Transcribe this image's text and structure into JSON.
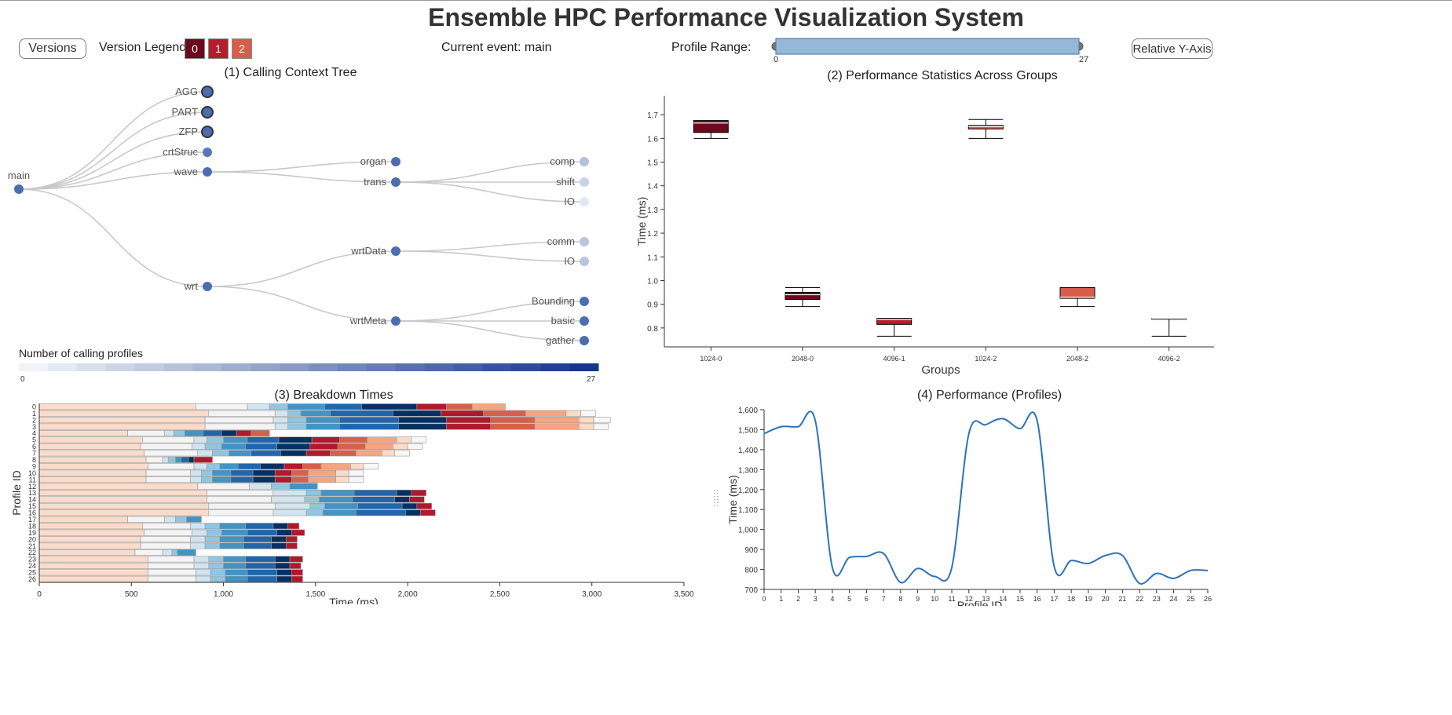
{
  "header": {
    "title": "Ensemble HPC Performance Visualization System",
    "versions_button": "Versions",
    "version_legends_label": "Version Legends:",
    "version_legends": [
      {
        "label": "0",
        "color": "#6b0a1f"
      },
      {
        "label": "1",
        "color": "#b71c2c"
      },
      {
        "label": "2",
        "color": "#d75d4a"
      }
    ],
    "current_event_label": "Current event: main",
    "profile_range_label": "Profile Range:",
    "profile_range_min": "0",
    "profile_range_max": "27",
    "relative_y_button": "Relative Y-Axis"
  },
  "cct": {
    "title": "(1) Calling Context Tree",
    "root": "main",
    "level1": [
      "AGG",
      "PART",
      "ZFP",
      "crtStruc",
      "wave",
      "wrt"
    ],
    "level2": [
      "organ",
      "trans",
      "wrtData",
      "wrtMeta"
    ],
    "level3": [
      "comp",
      "shift",
      "IO",
      "comm",
      "IO",
      "Bounding",
      "basic",
      "gather"
    ],
    "legend_title": "Number of calling profiles",
    "legend_min": "0",
    "legend_max": "27"
  },
  "boxplot": {
    "title": "(2) Performance Statistics Across Groups",
    "ylabel": "Time (ms)",
    "xlabel": "Groups"
  },
  "breakdown": {
    "title": "(3) Breakdown Times",
    "ylabel": "Profile ID",
    "xlabel": "Time (ms)"
  },
  "profiles": {
    "title": "(4) Performance (Profiles)",
    "ylabel": "Time (ms)",
    "xlabel": "Profile ID"
  },
  "chart_data": [
    {
      "type": "box",
      "title": "(2) Performance Statistics Across Groups",
      "xlabel": "Groups",
      "ylabel": "Time (ms)",
      "ylim": [
        0.72,
        1.78
      ],
      "y_ticks": [
        "0.8",
        "0.9",
        "1.0",
        "1.1",
        "1.2",
        "1.3",
        "1.4",
        "1.5",
        "1.6",
        "1.7"
      ],
      "categories": [
        "1024-0",
        "2048-0",
        "4096-1",
        "1024-2",
        "2048-2",
        "4096-2"
      ],
      "boxes": [
        {
          "group": "1024-0",
          "min": 1.6,
          "q1": 1.625,
          "median": 1.665,
          "q3": 1.675,
          "max": 1.675,
          "color": "#6b0a1f"
        },
        {
          "group": "2048-0",
          "min": 0.89,
          "q1": 0.92,
          "median": 0.94,
          "q3": 0.95,
          "max": 0.97,
          "color": "#6b0a1f"
        },
        {
          "group": "4096-1",
          "min": 0.765,
          "q1": 0.815,
          "median": 0.835,
          "q3": 0.84,
          "max": 0.84,
          "color": "#b71c2c"
        },
        {
          "group": "1024-2",
          "min": 1.6,
          "q1": 1.64,
          "median": 1.65,
          "q3": 1.655,
          "max": 1.68,
          "color": "#d75d4a"
        },
        {
          "group": "2048-2",
          "min": 0.89,
          "q1": 0.925,
          "median": 0.93,
          "q3": 0.97,
          "max": 0.97,
          "color": "#d75d4a"
        },
        {
          "group": "4096-2",
          "min": 0.765,
          "q1": 0.84,
          "median": 0.84,
          "q3": 0.84,
          "max": 0.84,
          "color": "#d75d4a"
        }
      ]
    },
    {
      "type": "bar",
      "orientation": "horizontal-stacked",
      "title": "(3) Breakdown Times",
      "xlabel": "Time (ms)",
      "ylabel": "Profile ID",
      "xlim": [
        0,
        3500
      ],
      "x_ticks": [
        "0",
        "500",
        "1,000",
        "1,500",
        "2,000",
        "2,500",
        "3,000",
        "3,500"
      ],
      "palette": [
        "#fbdccb",
        "#f4f4f4",
        "#d1e5f0",
        "#92c5de",
        "#4393c3",
        "#2166ac",
        "#053061",
        "#b2182b",
        "#d6604d",
        "#f4a582",
        "#fddbc7",
        "#f7f7f7"
      ],
      "categories": [
        "0",
        "1",
        "2",
        "3",
        "4",
        "5",
        "6",
        "7",
        "8",
        "9",
        "10",
        "11",
        "12",
        "13",
        "14",
        "15",
        "16",
        "17",
        "18",
        "19",
        "20",
        "21",
        "22",
        "23",
        "24",
        "25",
        "26"
      ],
      "rows": [
        [
          850,
          280,
          120,
          100,
          200,
          200,
          300,
          160,
          140,
          180
        ],
        [
          920,
          360,
          70,
          70,
          160,
          340,
          260,
          230,
          230,
          220,
          80,
          80
        ],
        [
          900,
          370,
          80,
          100,
          180,
          320,
          260,
          240,
          240,
          240,
          80,
          90
        ],
        [
          900,
          380,
          70,
          100,
          180,
          320,
          260,
          240,
          240,
          240,
          80,
          80
        ],
        [
          480,
          200,
          50,
          60,
          100,
          100,
          80,
          80,
          100
        ],
        [
          560,
          280,
          70,
          90,
          130,
          170,
          180,
          150,
          150,
          160,
          80,
          80
        ],
        [
          550,
          280,
          70,
          90,
          130,
          170,
          180,
          150,
          150,
          150,
          80,
          80
        ],
        [
          570,
          290,
          80,
          90,
          120,
          160,
          140,
          130,
          140,
          140,
          70,
          80
        ],
        [
          580,
          90,
          30,
          40,
          30,
          40,
          30,
          100
        ],
        [
          590,
          250,
          70,
          70,
          100,
          120,
          130,
          100,
          100,
          160,
          70,
          80
        ],
        [
          580,
          240,
          60,
          60,
          100,
          120,
          120,
          90,
          90,
          150,
          70,
          80
        ],
        [
          580,
          240,
          60,
          60,
          100,
          120,
          120,
          90,
          90,
          150,
          70,
          80
        ],
        [
          860,
          280,
          120,
          100,
          150
        ],
        [
          910,
          360,
          180,
          80,
          180,
          230,
          80,
          80
        ],
        [
          910,
          350,
          180,
          80,
          180,
          230,
          80,
          80
        ],
        [
          920,
          360,
          190,
          80,
          180,
          240,
          80,
          80
        ],
        [
          920,
          350,
          180,
          90,
          180,
          270,
          80,
          80
        ],
        [
          480,
          200,
          60,
          60,
          80
        ],
        [
          560,
          260,
          80,
          80,
          140,
          150,
          80,
          60
        ],
        [
          570,
          260,
          80,
          80,
          140,
          160,
          80,
          70
        ],
        [
          550,
          270,
          80,
          80,
          130,
          150,
          80,
          60
        ],
        [
          550,
          270,
          80,
          80,
          130,
          150,
          80,
          60
        ],
        [
          520,
          150,
          50,
          30,
          100
        ],
        [
          590,
          250,
          80,
          80,
          120,
          160,
          80,
          70
        ],
        [
          590,
          250,
          80,
          80,
          120,
          160,
          80,
          60
        ],
        [
          590,
          260,
          80,
          80,
          120,
          160,
          80,
          60
        ],
        [
          590,
          260,
          80,
          80,
          120,
          160,
          80,
          60
        ]
      ]
    },
    {
      "type": "line",
      "title": "(4) Performance (Profiles)",
      "xlabel": "Profile ID",
      "ylabel": "Time (ms)",
      "ylim": [
        700,
        1600
      ],
      "y_ticks": [
        "700",
        "800",
        "900",
        "1,000",
        "1,100",
        "1,200",
        "1,300",
        "1,400",
        "1,500",
        "1,600"
      ],
      "x": [
        0,
        1,
        2,
        3,
        4,
        5,
        6,
        7,
        8,
        9,
        10,
        11,
        12,
        13,
        14,
        15,
        16,
        17,
        18,
        19,
        20,
        21,
        22,
        23,
        24,
        25,
        26
      ],
      "series": [
        {
          "values": [
            1480,
            1515,
            1515,
            1545,
            810,
            860,
            865,
            880,
            735,
            805,
            765,
            810,
            1480,
            1525,
            1555,
            1505,
            1545,
            815,
            845,
            830,
            870,
            870,
            730,
            780,
            755,
            795,
            795
          ]
        }
      ]
    }
  ]
}
